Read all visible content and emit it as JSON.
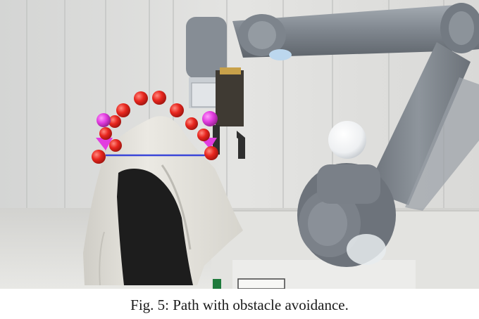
{
  "figure": {
    "caption": "Fig. 5: Path with obstacle avoidance.",
    "colors": {
      "waypoint": "#e8261e",
      "waypoint_highlight": "#e23de0",
      "path_line": "#3a46d8",
      "robot": "#8a9199",
      "wall": "#dcdcdb",
      "cloth": "#e7e5df"
    }
  }
}
